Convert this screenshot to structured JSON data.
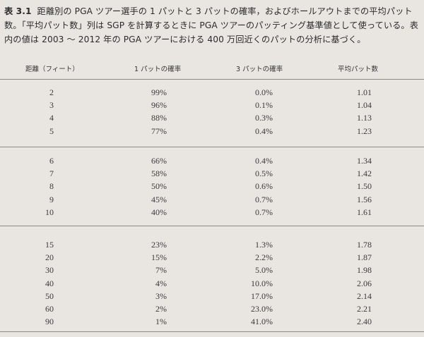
{
  "caption": {
    "label": "表 3.1",
    "text": "距離別の PGA ツアー選手の 1 パットと 3 パットの確率，およびホールアウトまでの平均パット数。「平均パット数」列は SGP を計算するときに PGA ツアーのパッティング基準値として使っている。表内の値は 2003 ～ 2012 年の PGA ツアーにおける 400 万回近くのパットの分析に基づく。"
  },
  "table": {
    "headers": {
      "distance": "距離（フィート）",
      "one_putt": "1 パットの確率",
      "three_putt": "3 パットの確率",
      "avg_putts": "平均パット数"
    },
    "groups": [
      [
        {
          "distance": "2",
          "one_putt": "99%",
          "three_putt": "0.0%",
          "avg_putts": "1.01"
        },
        {
          "distance": "3",
          "one_putt": "96%",
          "three_putt": "0.1%",
          "avg_putts": "1.04"
        },
        {
          "distance": "4",
          "one_putt": "88%",
          "three_putt": "0.3%",
          "avg_putts": "1.13"
        },
        {
          "distance": "5",
          "one_putt": "77%",
          "three_putt": "0.4%",
          "avg_putts": "1.23"
        }
      ],
      [
        {
          "distance": "6",
          "one_putt": "66%",
          "three_putt": "0.4%",
          "avg_putts": "1.34"
        },
        {
          "distance": "7",
          "one_putt": "58%",
          "three_putt": "0.5%",
          "avg_putts": "1.42"
        },
        {
          "distance": "8",
          "one_putt": "50%",
          "three_putt": "0.6%",
          "avg_putts": "1.50"
        },
        {
          "distance": "9",
          "one_putt": "45%",
          "three_putt": "0.7%",
          "avg_putts": "1.56"
        },
        {
          "distance": "10",
          "one_putt": "40%",
          "three_putt": "0.7%",
          "avg_putts": "1.61"
        }
      ],
      [
        {
          "distance": "15",
          "one_putt": "23%",
          "three_putt": "1.3%",
          "avg_putts": "1.78"
        },
        {
          "distance": "20",
          "one_putt": "15%",
          "three_putt": "2.2%",
          "avg_putts": "1.87"
        },
        {
          "distance": "30",
          "one_putt": "7%",
          "three_putt": "5.0%",
          "avg_putts": "1.98"
        },
        {
          "distance": "40",
          "one_putt": "4%",
          "three_putt": "10.0%",
          "avg_putts": "2.06"
        },
        {
          "distance": "50",
          "one_putt": "3%",
          "three_putt": "17.0%",
          "avg_putts": "2.14"
        },
        {
          "distance": "60",
          "one_putt": "2%",
          "three_putt": "23.0%",
          "avg_putts": "2.21"
        },
        {
          "distance": "90",
          "one_putt": "1%",
          "three_putt": "41.0%",
          "avg_putts": "2.40"
        }
      ]
    ]
  }
}
